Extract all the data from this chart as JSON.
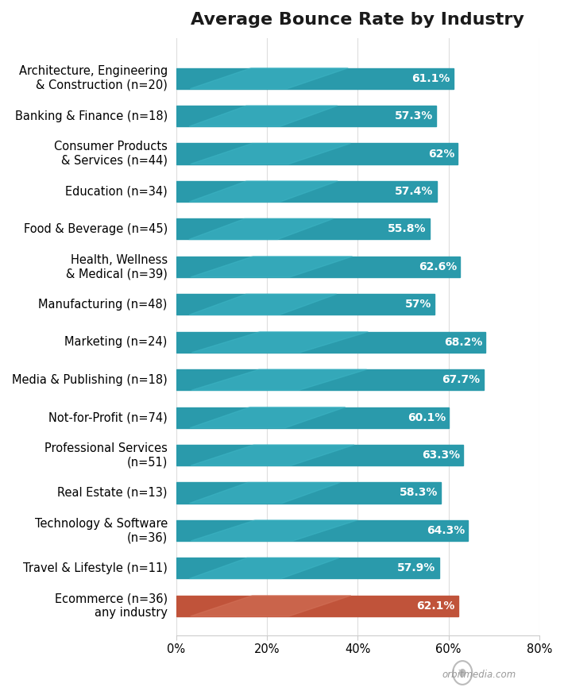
{
  "title": "Average Bounce Rate by Industry",
  "categories": [
    "Architecture, Engineering\n& Construction (n=20)",
    "Banking & Finance (n=18)",
    "Consumer Products\n& Services (n=44)",
    "Education (n=34)",
    "Food & Beverage (n=45)",
    "Health, Wellness\n& Medical (n=39)",
    "Manufacturing (n=48)",
    "Marketing (n=24)",
    "Media & Publishing (n=18)",
    "Not-for-Profit (n=74)",
    "Professional Services\n(n=51)",
    "Real Estate (n=13)",
    "Technology & Software\n(n=36)",
    "Travel & Lifestyle (n=11)",
    "Ecommerce (n=36)\nany industry"
  ],
  "values": [
    61.1,
    57.3,
    62.0,
    57.4,
    55.8,
    62.6,
    57.0,
    68.2,
    67.7,
    60.1,
    63.3,
    58.3,
    64.3,
    57.9,
    62.1
  ],
  "labels": [
    "61.1%",
    "57.3%",
    "62%",
    "57.4%",
    "55.8%",
    "62.6%",
    "57%",
    "68.2%",
    "67.7%",
    "60.1%",
    "63.3%",
    "58.3%",
    "64.3%",
    "57.9%",
    "62.1%"
  ],
  "bar_colors": [
    "#2a9aab",
    "#2a9aab",
    "#2a9aab",
    "#2a9aab",
    "#2a9aab",
    "#2a9aab",
    "#2a9aab",
    "#2a9aab",
    "#2a9aab",
    "#2a9aab",
    "#2a9aab",
    "#2a9aab",
    "#2a9aab",
    "#2a9aab",
    "#c0533a"
  ],
  "stripe_colors": [
    "#3db5c5",
    "#3db5c5",
    "#3db5c5",
    "#3db5c5",
    "#3db5c5",
    "#3db5c5",
    "#3db5c5",
    "#3db5c5",
    "#3db5c5",
    "#3db5c5",
    "#3db5c5",
    "#3db5c5",
    "#3db5c5",
    "#3db5c5",
    "#d4735a"
  ],
  "xlim": [
    0,
    80
  ],
  "xticks": [
    0,
    20,
    40,
    60,
    80
  ],
  "xticklabels": [
    "0%",
    "20%",
    "40%",
    "60%",
    "80%"
  ],
  "background_color": "#ffffff",
  "title_fontsize": 16,
  "label_fontsize": 10.5,
  "tick_fontsize": 10.5,
  "value_fontsize": 10,
  "bar_height": 0.55,
  "watermark": "orbitmedia.com"
}
